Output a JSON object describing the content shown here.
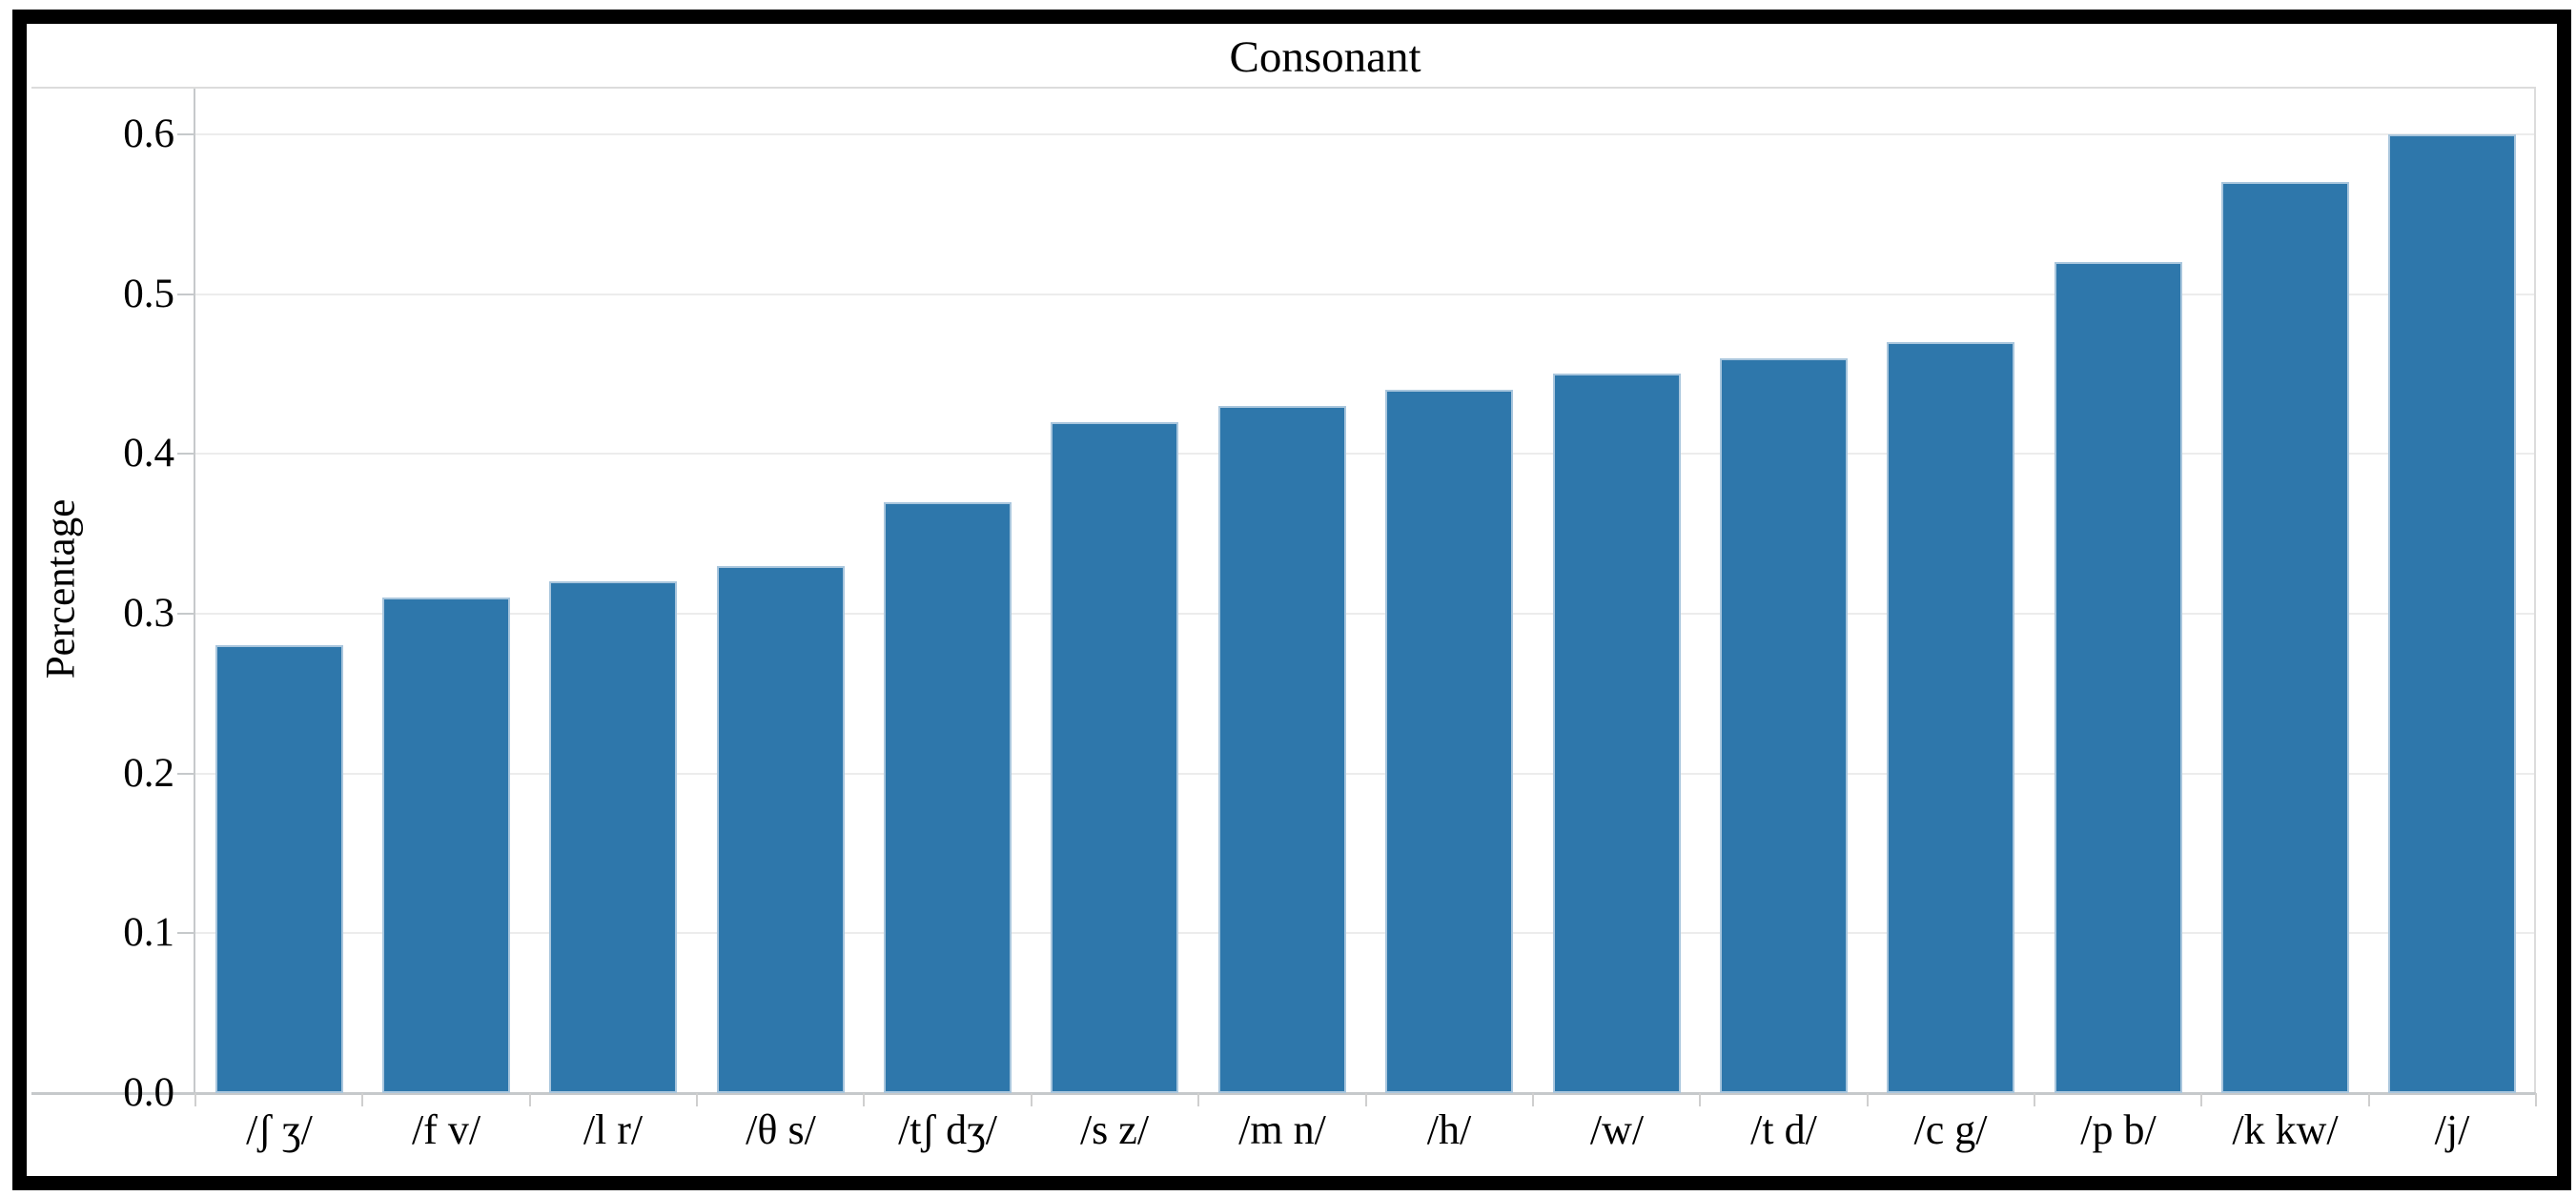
{
  "figure": {
    "title": "Consonant",
    "y_axis_title": "Percentage"
  },
  "chart_data": {
    "type": "bar",
    "title": "Consonant",
    "xlabel": "",
    "ylabel": "Percentage",
    "categories": [
      "/ʃ ʒ/",
      "/f v/",
      "/l r/",
      "/θ s/",
      "/tʃ dʒ/",
      "/s z/",
      "/m n/",
      "/h/",
      "/w/",
      "/t d/",
      "/c g/",
      "/p b/",
      "/k kw/",
      "/j/"
    ],
    "values": [
      0.28,
      0.31,
      0.32,
      0.33,
      0.37,
      0.42,
      0.43,
      0.44,
      0.45,
      0.46,
      0.47,
      0.52,
      0.57,
      0.6
    ],
    "yticks": [
      0.0,
      0.1,
      0.2,
      0.3,
      0.4,
      0.5,
      0.6
    ],
    "ylim": [
      0,
      0.63
    ],
    "grid": true,
    "legend": null,
    "colors": {
      "bar_fill": "#2E77AB",
      "bar_edge": "#A9C6DD",
      "gridline": "#ECECEC",
      "axis_line": "#C6C9CB",
      "frame_line": "#DCDCDC",
      "minor_tick": "#CFCFCF",
      "text": "#000000",
      "figure_border": "#000000",
      "background": "#FFFFFF"
    }
  }
}
